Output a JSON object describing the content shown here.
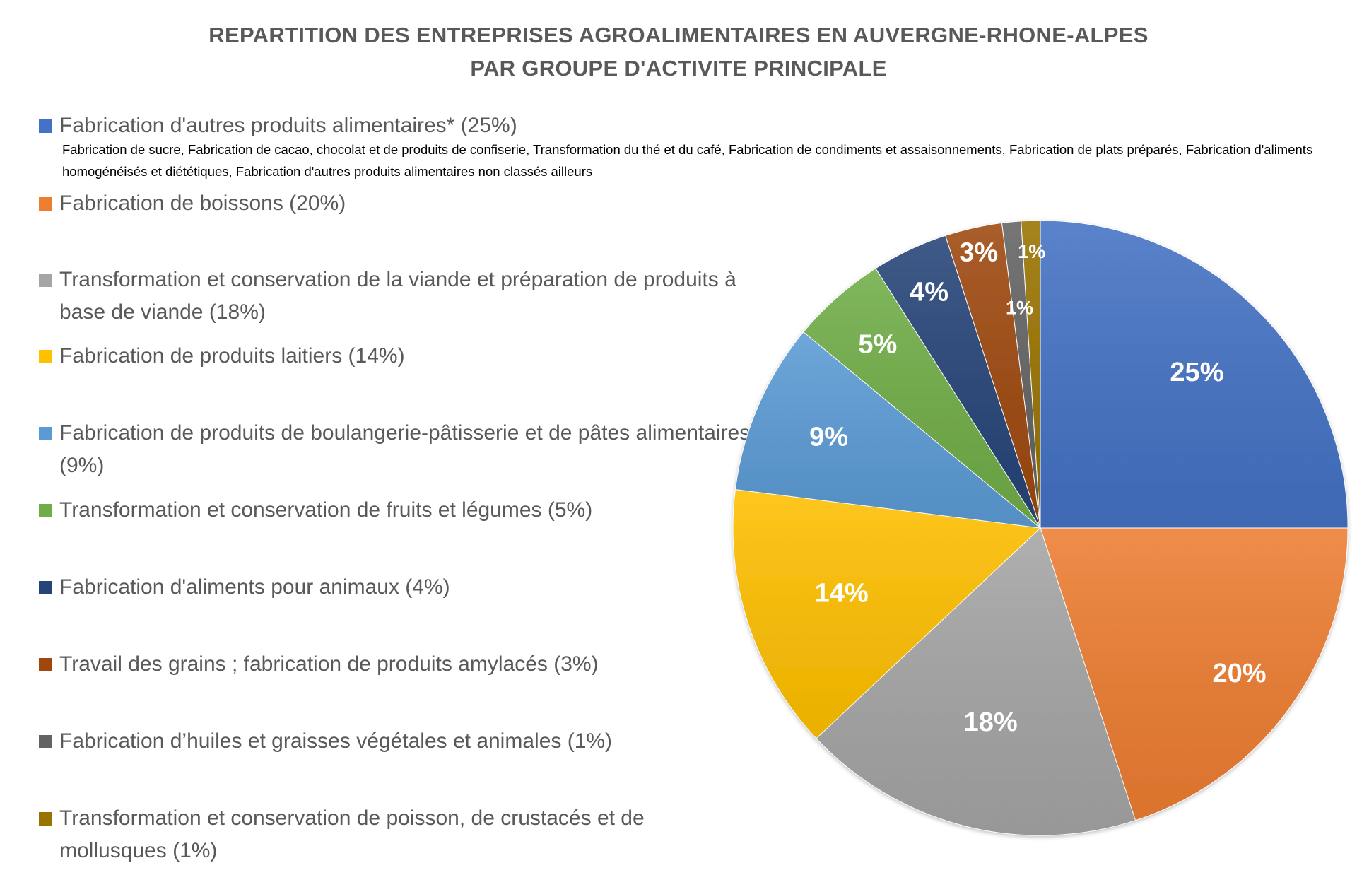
{
  "chart_data": {
    "type": "pie",
    "title": [
      "REPARTITION DES ENTREPRISES AGROALIMENTAIRES EN AUVERGNE-RHONE-ALPES",
      "PAR GROUPE D'ACTIVITE PRINCIPALE"
    ],
    "legend_placement": "left",
    "start_angle": "top, clockwise",
    "slices": [
      {
        "label": "Fabrication d'autres produits alimentaires* (25%)",
        "value": 25,
        "data_label": "25%",
        "color": "#4472C4"
      },
      {
        "label": "Fabrication de boissons (20%)",
        "value": 20,
        "data_label": "20%",
        "color": "#ED7D31"
      },
      {
        "label": "Transformation et conservation de la viande et préparation de produits à base de viande (18%)",
        "value": 18,
        "data_label": "18%",
        "color": "#A5A5A5"
      },
      {
        "label": "Fabrication de produits laitiers (14%)",
        "value": 14,
        "data_label": "14%",
        "color": "#FFC000"
      },
      {
        "label": "Fabrication de produits de boulangerie-pâtisserie et de pâtes alimentaires (9%)",
        "value": 9,
        "data_label": "9%",
        "color": "#5B9BD5"
      },
      {
        "label": "Transformation et conservation de fruits et légumes (5%)",
        "value": 5,
        "data_label": "5%",
        "color": "#70AD47"
      },
      {
        "label": "Fabrication d'aliments pour animaux (4%)",
        "value": 4,
        "data_label": "4%",
        "color": "#264478"
      },
      {
        "label": "Travail des grains ; fabrication de produits amylacés (3%)",
        "value": 3,
        "data_label": "3%",
        "color": "#9E480E"
      },
      {
        "label": "Fabrication d’huiles et graisses végétales et animales (1%)",
        "value": 1,
        "data_label": "1%",
        "color": "#636363"
      },
      {
        "label": "Transformation et conservation de poisson, de crustacés et de mollusques (1%)",
        "value": 1,
        "data_label": "1%",
        "color": "#997300"
      }
    ],
    "footnote": "Fabrication de sucre, Fabrication de cacao, chocolat et de produits de confiserie, Transformation du thé et du café, Fabrication de condiments et assaisonnements, Fabrication de plats préparés, Fabrication d'aliments homogénéisés et diététiques, Fabrication d'autres produits alimentaires non classés ailleurs"
  }
}
